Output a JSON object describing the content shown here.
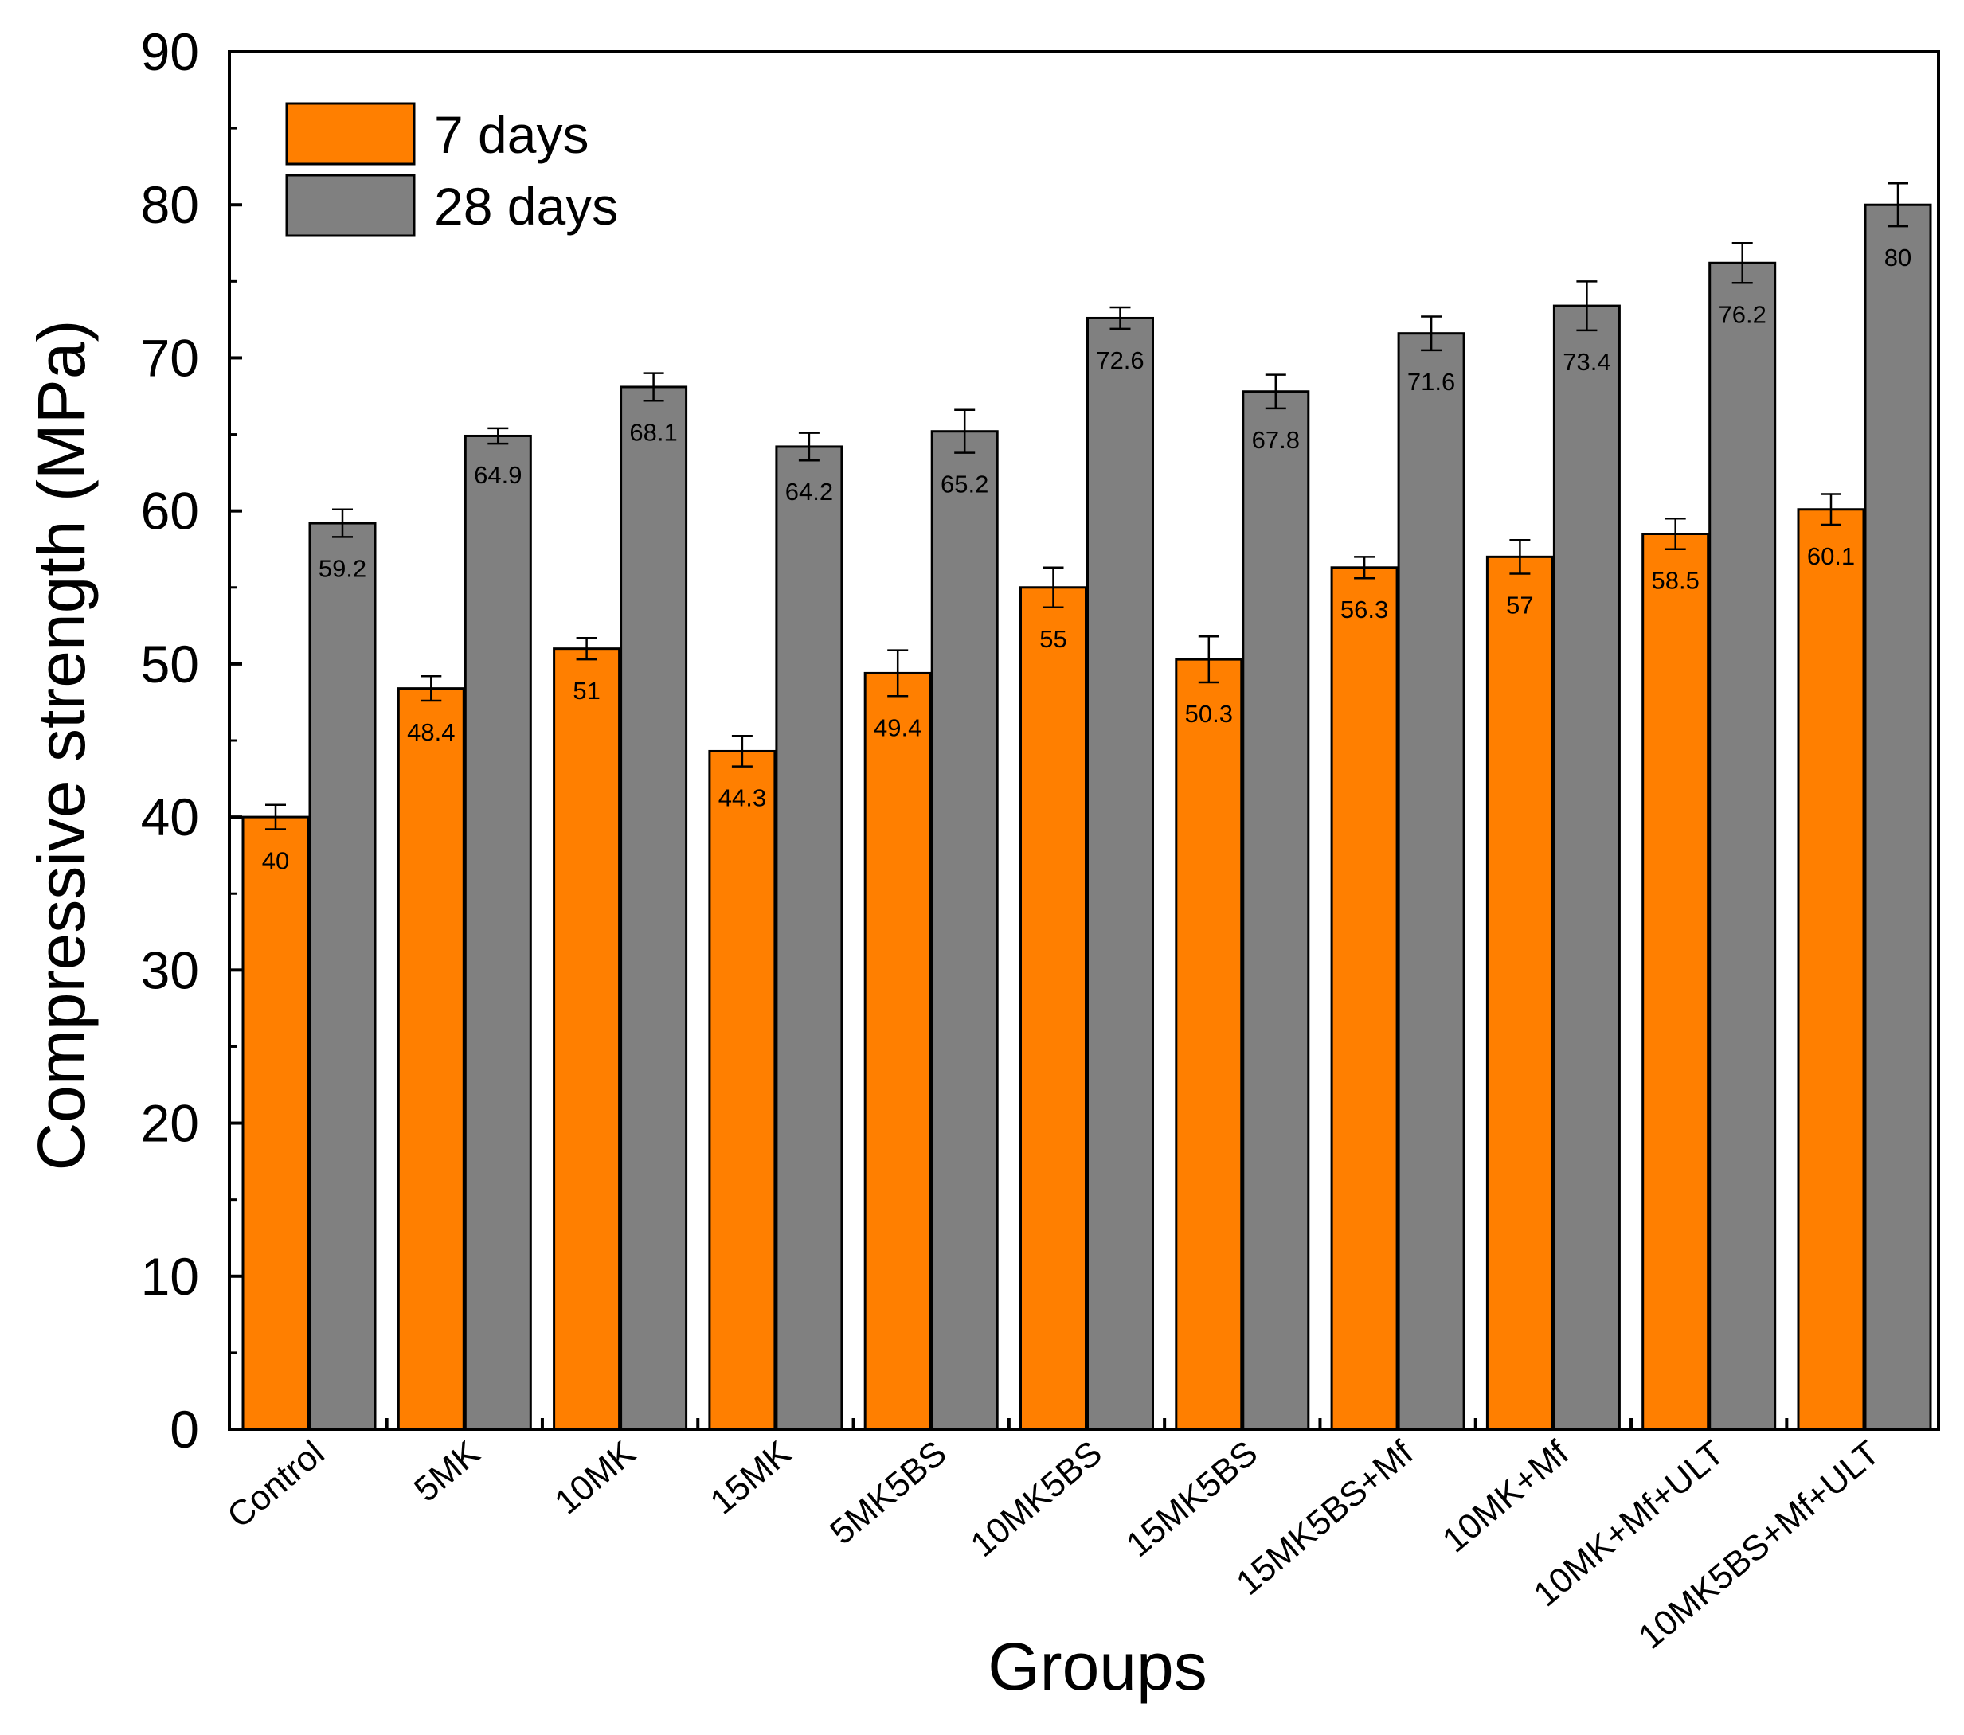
{
  "chart_data": {
    "type": "bar",
    "title": "",
    "xlabel": "Groups",
    "ylabel": "Compressive strength (MPa)",
    "ylim": [
      0,
      90
    ],
    "yticks": [
      "0",
      "10",
      "20",
      "30",
      "40",
      "50",
      "60",
      "70",
      "80",
      "90"
    ],
    "grid": false,
    "legend_position": "top-left",
    "categories": [
      "Control",
      "5MK",
      "10MK",
      "15MK",
      "5MK5BS",
      "10MK5BS",
      "15MK5BS",
      "15MK5BS+Mf",
      "10MK+Mf",
      "10MK+Mf+ULT",
      "10MK5BS+Mf+ULT"
    ],
    "series": [
      {
        "name": "7 days",
        "color": "#FF7F00",
        "values": [
          40,
          48.4,
          51,
          44.3,
          49.4,
          55,
          50.3,
          56.3,
          57,
          58.5,
          60.1
        ],
        "labels": [
          "40",
          "48.4",
          "51",
          "44.3",
          "49.4",
          "55",
          "50.3",
          "56.3",
          "57",
          "58.5",
          "60.1"
        ],
        "errors": [
          0.8,
          0.8,
          0.7,
          1.0,
          1.5,
          1.3,
          1.5,
          0.7,
          1.1,
          1.0,
          1.0
        ]
      },
      {
        "name": "28 days",
        "color": "#808080",
        "values": [
          59.2,
          64.9,
          68.1,
          64.2,
          65.2,
          72.6,
          67.8,
          71.6,
          73.4,
          76.2,
          80
        ],
        "labels": [
          "59.2",
          "64.9",
          "68.1",
          "64.2",
          "65.2",
          "72.6",
          "67.8",
          "71.6",
          "73.4",
          "76.2",
          "80"
        ],
        "errors": [
          0.9,
          0.5,
          0.9,
          0.9,
          1.4,
          0.7,
          1.1,
          1.1,
          1.6,
          1.3,
          1.4
        ]
      }
    ]
  }
}
